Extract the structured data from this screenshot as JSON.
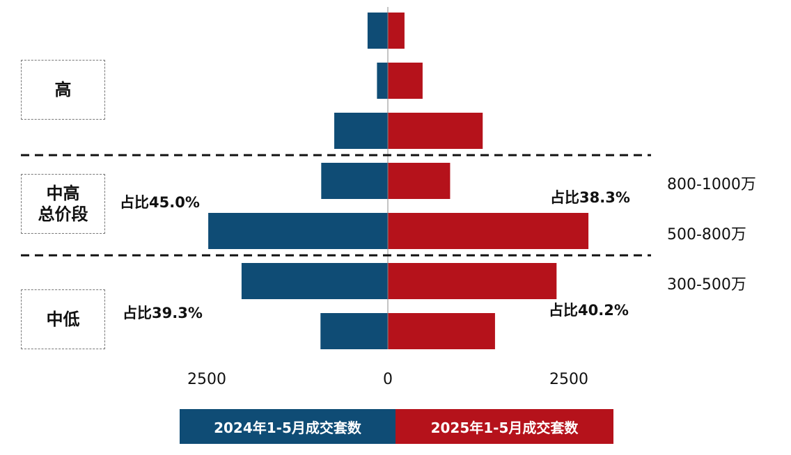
{
  "segments": [
    {
      "lines": [
        "高"
      ],
      "share_2024": "",
      "share_2025": ""
    },
    {
      "lines": [
        "中高",
        "总价段"
      ],
      "share_2024": "占比45.0%",
      "share_2025": "占比38.3%"
    },
    {
      "lines": [
        "中低"
      ],
      "share_2024": "占比39.3%",
      "share_2025": "占比40.2%"
    }
  ],
  "legend": {
    "left_label": "2024年1-5月成交套数",
    "right_label": "2025年1-5月成交套数",
    "left_color": "#0f4c75",
    "right_color": "#b5121b"
  },
  "chart_data": {
    "type": "bar",
    "orientation": "horizontal-butterfly",
    "categories": [
      "",
      "",
      "",
      "800-1000万",
      "500-800万",
      "300-500万",
      ""
    ],
    "series": [
      {
        "name": "2024年1-5月成交套数",
        "color": "#0f4c75",
        "values": [
          280,
          150,
          740,
          920,
          2480,
          2020,
          930
        ]
      },
      {
        "name": "2025年1-5月成交套数",
        "color": "#b5121b",
        "values": [
          230,
          480,
          1310,
          860,
          2770,
          2330,
          1480
        ]
      }
    ],
    "x_ticks": [
      {
        "value": -2500,
        "label": "2500"
      },
      {
        "value": 0,
        "label": "0"
      },
      {
        "value": 2500,
        "label": "2500"
      }
    ],
    "xlim": [
      -2500,
      2500
    ],
    "legend_position": "bottom"
  }
}
